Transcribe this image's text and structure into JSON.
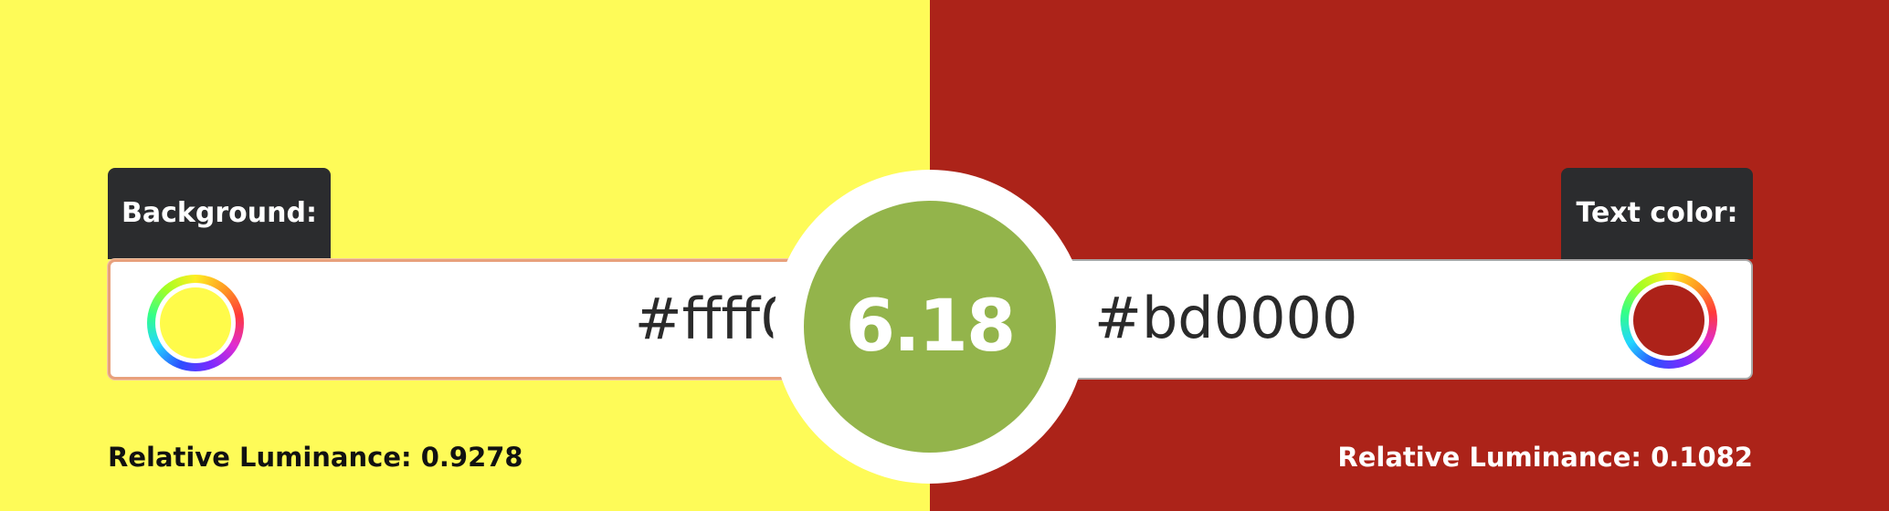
{
  "colors": {
    "background": "#fefb58",
    "text_panel": "#ac2319",
    "ratio_badge": "#93b44b",
    "left_swatch": "#fffb4a",
    "right_swatch": "#ad2219"
  },
  "background_panel": {
    "label": "Background:",
    "hex_value": "#ffff00",
    "luminance_label": "Relative Luminance:",
    "luminance_value": "0.9278",
    "swatch_icon": "color-wheel-icon"
  },
  "text_panel": {
    "label": "Text color:",
    "hex_value": "#bd0000",
    "luminance_label": "Relative Luminance:",
    "luminance_value": "0.1082",
    "swatch_icon": "color-wheel-icon"
  },
  "contrast": {
    "ratio": "6.18"
  }
}
